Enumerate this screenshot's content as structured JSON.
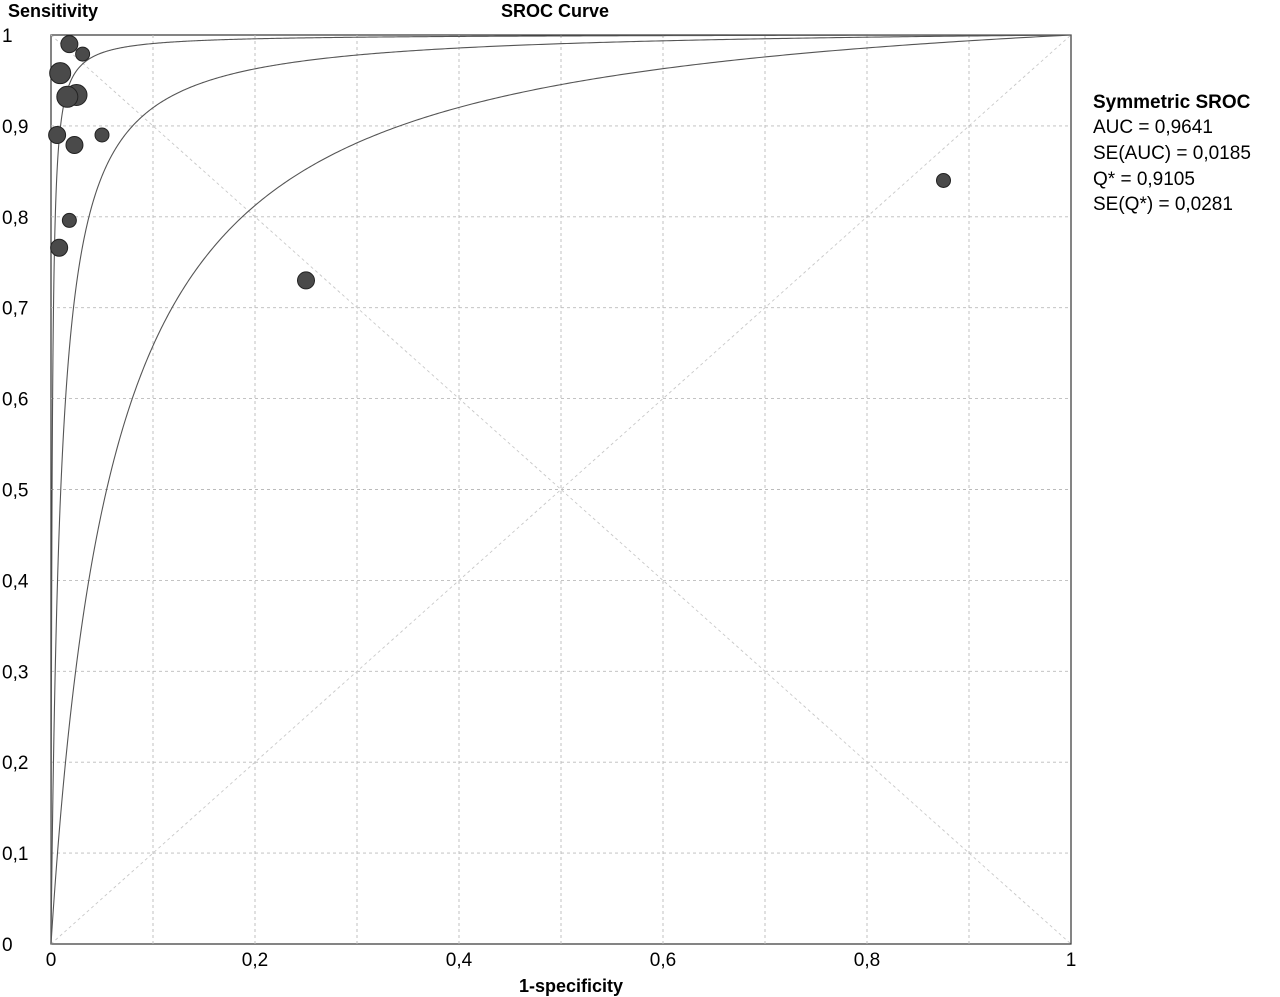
{
  "chart_data": {
    "type": "scatter",
    "title": "SROC Curve",
    "xlabel": "1-specificity",
    "ylabel": "Sensitivity",
    "xlim": [
      0,
      1
    ],
    "ylim": [
      0,
      1
    ],
    "x_ticks": [
      "0",
      "0,2",
      "0,4",
      "0,6",
      "0,8",
      "1"
    ],
    "y_ticks": [
      "0",
      "0,1",
      "0,2",
      "0,3",
      "0,4",
      "0,5",
      "0,6",
      "0,7",
      "0,8",
      "0,9",
      "1"
    ],
    "grid": true,
    "points": [
      {
        "x": 0.018,
        "y": 0.99,
        "size": "medium"
      },
      {
        "x": 0.031,
        "y": 0.979,
        "size": "small"
      },
      {
        "x": 0.009,
        "y": 0.958,
        "size": "large"
      },
      {
        "x": 0.025,
        "y": 0.934,
        "size": "large"
      },
      {
        "x": 0.016,
        "y": 0.932,
        "size": "large"
      },
      {
        "x": 0.006,
        "y": 0.89,
        "size": "medium"
      },
      {
        "x": 0.05,
        "y": 0.89,
        "size": "small"
      },
      {
        "x": 0.023,
        "y": 0.879,
        "size": "medium"
      },
      {
        "x": 0.018,
        "y": 0.796,
        "size": "small"
      },
      {
        "x": 0.008,
        "y": 0.766,
        "size": "medium"
      },
      {
        "x": 0.25,
        "y": 0.73,
        "size": "medium"
      },
      {
        "x": 0.875,
        "y": 0.84,
        "size": "small"
      }
    ],
    "curves": [
      {
        "type": "sroc-fit",
        "Q": 0.9105
      },
      {
        "type": "sroc-band",
        "Q": 0.9686
      },
      {
        "type": "sroc-band",
        "Q": 0.8063
      }
    ],
    "reference_lines": [
      "diagonal",
      "anti-diagonal"
    ],
    "colors": {
      "points": "#4a4a4a",
      "curves": "#555555",
      "grid": "#bbbbbb",
      "frame": "#333333"
    },
    "stats": {
      "heading": "Symmetric SROC",
      "auc": "AUC = 0,9641",
      "se_auc": "SE(AUC) = 0,0185",
      "q_star": "Q* = 0,9105",
      "se_q": "SE(Q*) = 0,0281"
    }
  }
}
